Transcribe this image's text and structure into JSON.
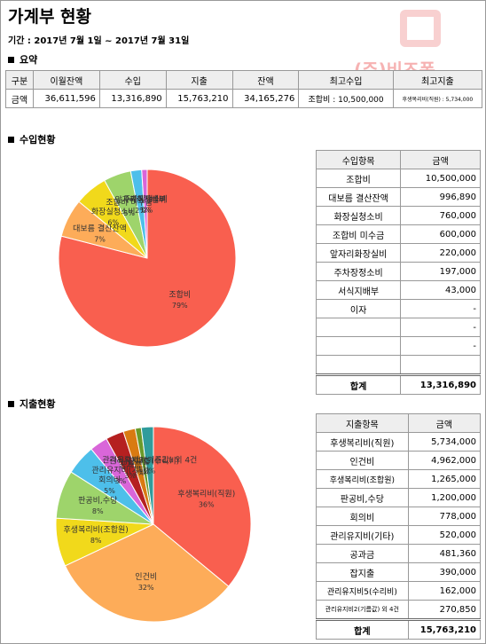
{
  "title": "가계부 현황",
  "period": "기간 : 2017년 7월 1일 ~ 2017년 7월 31일",
  "watermark": "(주)비즈폼",
  "summary": {
    "heading": "요약",
    "columns": [
      "구분",
      "이월잔액",
      "수입",
      "지출",
      "잔액",
      "최고수입",
      "최고지출"
    ],
    "row": [
      "금액",
      "36,611,596",
      "13,316,890",
      "15,763,210",
      "34,165,276",
      "조합비 : 10,500,000",
      "후생복리비(직원) : 5,734,000"
    ]
  },
  "income": {
    "heading": "수입현황",
    "columns": [
      "수입항목",
      "금액"
    ],
    "rows": [
      [
        "조합비",
        "10,500,000"
      ],
      [
        "대보름 결산잔액",
        "996,890"
      ],
      [
        "화장실청소비",
        "760,000"
      ],
      [
        "조합비 미수금",
        "600,000"
      ],
      [
        "앞자리화장실비",
        "220,000"
      ],
      [
        "주차장정소비",
        "197,000"
      ],
      [
        "서식지배부",
        "43,000"
      ],
      [
        "이자",
        "-"
      ],
      [
        null,
        "-"
      ],
      [
        null,
        "-"
      ]
    ],
    "total": [
      "합계",
      "13,316,890"
    ]
  },
  "expense": {
    "heading": "지출현황",
    "columns": [
      "지출항목",
      "금액"
    ],
    "rows": [
      [
        "후생복리비(직원)",
        "5,734,000"
      ],
      [
        "인건비",
        "4,962,000"
      ],
      [
        "후생복리비(조합원)",
        "1,265,000"
      ],
      [
        "판공비,수당",
        "1,200,000"
      ],
      [
        "회의비",
        "778,000"
      ],
      [
        "관리유지비(기타)",
        "520,000"
      ],
      [
        "공과금",
        "481,360"
      ],
      [
        "잡지출",
        "390,000"
      ],
      [
        "관리유지비5(수리비)",
        "162,000"
      ],
      [
        "관리유지비2(기름값) 외 4건",
        "270,850"
      ]
    ],
    "total": [
      "합계",
      "15,763,210"
    ]
  },
  "chart_data": [
    {
      "type": "pie",
      "categories": [
        "조합비",
        "대보름 결산잔액",
        "화장실청소비",
        "조합비 미수금",
        "앞자리화장실비",
        "주차장정소비",
        "서식지배부"
      ],
      "values": [
        79,
        7,
        6,
        5,
        2,
        1,
        0
      ],
      "value_labels": [
        "79%",
        "7%",
        "6%",
        "5%",
        "2%",
        "1%",
        "0%"
      ],
      "colors": [
        "#f95f4f",
        "#fdac59",
        "#f1d91b",
        "#9ed46b",
        "#4dbfea",
        "#d966d9",
        "#8e6fd4"
      ]
    },
    {
      "type": "pie",
      "categories": [
        "후생복리비(직원)",
        "인건비",
        "후생복리비(조합원)",
        "판공비,수당",
        "회의비",
        "관리유지비(기타)",
        "공과금",
        "잡지출",
        "관리유지비5(수리비)",
        "관리유지비2(기름값) 외 4건"
      ],
      "values": [
        36,
        32,
        8,
        8,
        5,
        3,
        3,
        2,
        1,
        2
      ],
      "value_labels": [
        "36%",
        "32%",
        "8%",
        "8%",
        "5%",
        "3%",
        "3%",
        "2%",
        "1%",
        "2%"
      ],
      "colors": [
        "#f95f4f",
        "#fdac59",
        "#f1d91b",
        "#9ed46b",
        "#4dbfea",
        "#d966d9",
        "#b52020",
        "#d97a12",
        "#6a9a2a",
        "#2f9c9c"
      ]
    }
  ]
}
